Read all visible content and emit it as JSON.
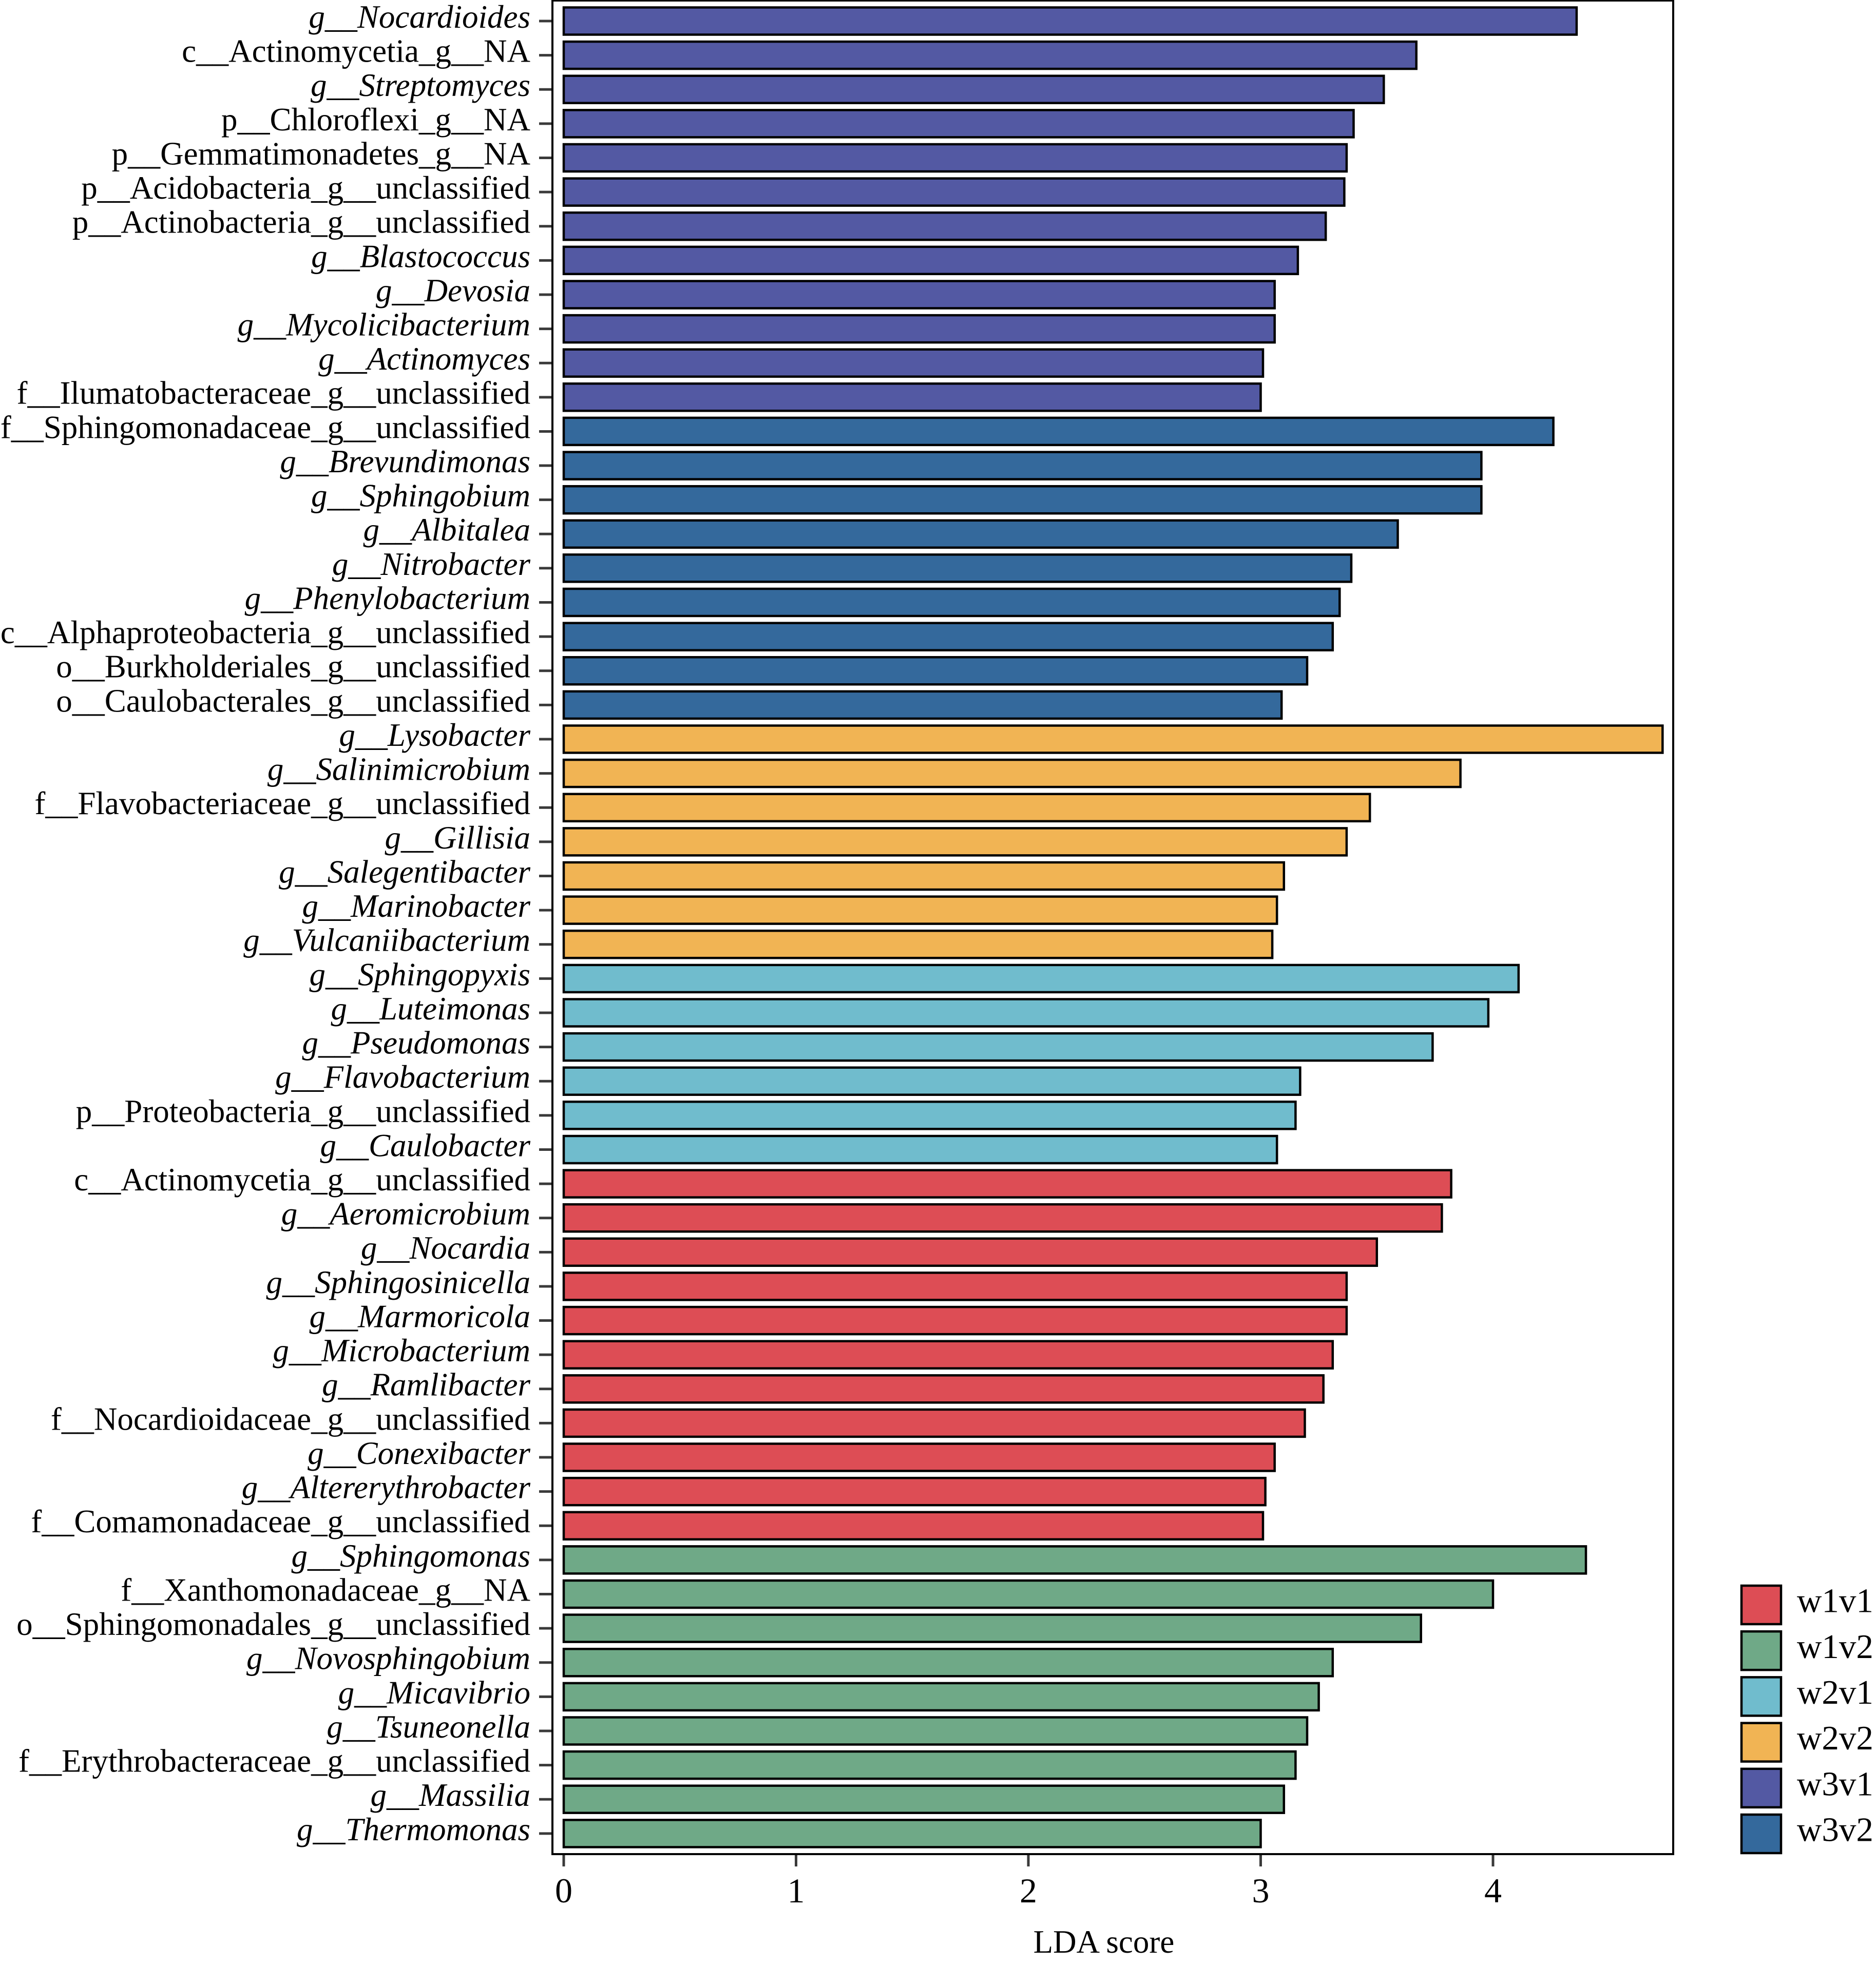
{
  "chart_data": {
    "type": "bar",
    "orientation": "horizontal",
    "title": "",
    "xlabel": "LDA score",
    "ylabel": "",
    "xlim": [
      0,
      4.78
    ],
    "x_ticks": [
      0,
      1,
      2,
      3,
      4
    ],
    "grid": false,
    "legend_position": "bottom-right",
    "bar_outline_color": "#000000",
    "axis_color": "#000000",
    "tick_color": "#3a3a3a",
    "background_color": "#ffffff",
    "bars": [
      {
        "label": "g__Nocardioides",
        "value": 4.36,
        "group": "w3v1",
        "italic": true
      },
      {
        "label": "c__Actinomycetia_g__NA",
        "value": 3.67,
        "group": "w3v1",
        "italic": false
      },
      {
        "label": "g__Streptomyces",
        "value": 3.53,
        "group": "w3v1",
        "italic": true
      },
      {
        "label": "p__Chloroflexi_g__NA",
        "value": 3.4,
        "group": "w3v1",
        "italic": false
      },
      {
        "label": "p__Gemmatimonadetes_g__NA",
        "value": 3.37,
        "group": "w3v1",
        "italic": false
      },
      {
        "label": "p__Acidobacteria_g__unclassified",
        "value": 3.36,
        "group": "w3v1",
        "italic": false
      },
      {
        "label": "p__Actinobacteria_g__unclassified",
        "value": 3.28,
        "group": "w3v1",
        "italic": false
      },
      {
        "label": "g__Blastococcus",
        "value": 3.16,
        "group": "w3v1",
        "italic": true
      },
      {
        "label": "g__Devosia",
        "value": 3.06,
        "group": "w3v1",
        "italic": true
      },
      {
        "label": "g__Mycolicibacterium",
        "value": 3.06,
        "group": "w3v1",
        "italic": true
      },
      {
        "label": "g__Actinomyces",
        "value": 3.01,
        "group": "w3v1",
        "italic": true
      },
      {
        "label": "f__Ilumatobacteraceae_g__unclassified",
        "value": 3.0,
        "group": "w3v1",
        "italic": false
      },
      {
        "label": "f__Sphingomonadaceae_g__unclassified",
        "value": 4.26,
        "group": "w3v2",
        "italic": false
      },
      {
        "label": "g__Brevundimonas",
        "value": 3.95,
        "group": "w3v2",
        "italic": true
      },
      {
        "label": "g__Sphingobium",
        "value": 3.95,
        "group": "w3v2",
        "italic": true
      },
      {
        "label": "g__Albitalea",
        "value": 3.59,
        "group": "w3v2",
        "italic": true
      },
      {
        "label": "g__Nitrobacter",
        "value": 3.39,
        "group": "w3v2",
        "italic": true
      },
      {
        "label": "g__Phenylobacterium",
        "value": 3.34,
        "group": "w3v2",
        "italic": true
      },
      {
        "label": "c__Alphaproteobacteria_g__unclassified",
        "value": 3.31,
        "group": "w3v2",
        "italic": false
      },
      {
        "label": "o__Burkholderiales_g__unclassified",
        "value": 3.2,
        "group": "w3v2",
        "italic": false
      },
      {
        "label": "o__Caulobacterales_g__unclassified",
        "value": 3.09,
        "group": "w3v2",
        "italic": false
      },
      {
        "label": "g__Lysobacter",
        "value": 4.73,
        "group": "w2v2",
        "italic": true
      },
      {
        "label": "g__Salinimicrobium",
        "value": 3.86,
        "group": "w2v2",
        "italic": true
      },
      {
        "label": "f__Flavobacteriaceae_g__unclassified",
        "value": 3.47,
        "group": "w2v2",
        "italic": false
      },
      {
        "label": "g__Gillisia",
        "value": 3.37,
        "group": "w2v2",
        "italic": true
      },
      {
        "label": "g__Salegentibacter",
        "value": 3.1,
        "group": "w2v2",
        "italic": true
      },
      {
        "label": "g__Marinobacter",
        "value": 3.07,
        "group": "w2v2",
        "italic": true
      },
      {
        "label": "g__Vulcaniibacterium",
        "value": 3.05,
        "group": "w2v2",
        "italic": true
      },
      {
        "label": "g__Sphingopyxis",
        "value": 4.11,
        "group": "w2v1",
        "italic": true
      },
      {
        "label": "g__Luteimonas",
        "value": 3.98,
        "group": "w2v1",
        "italic": true
      },
      {
        "label": "g__Pseudomonas",
        "value": 3.74,
        "group": "w2v1",
        "italic": true
      },
      {
        "label": "g__Flavobacterium",
        "value": 3.17,
        "group": "w2v1",
        "italic": true
      },
      {
        "label": "p__Proteobacteria_g__unclassified",
        "value": 3.15,
        "group": "w2v1",
        "italic": false
      },
      {
        "label": "g__Caulobacter",
        "value": 3.07,
        "group": "w2v1",
        "italic": true
      },
      {
        "label": "c__Actinomycetia_g__unclassified",
        "value": 3.82,
        "group": "w1v1",
        "italic": false
      },
      {
        "label": "g__Aeromicrobium",
        "value": 3.78,
        "group": "w1v1",
        "italic": true
      },
      {
        "label": "g__Nocardia",
        "value": 3.5,
        "group": "w1v1",
        "italic": true
      },
      {
        "label": "g__Sphingosinicella",
        "value": 3.37,
        "group": "w1v1",
        "italic": true
      },
      {
        "label": "g__Marmoricola",
        "value": 3.37,
        "group": "w1v1",
        "italic": true
      },
      {
        "label": "g__Microbacterium",
        "value": 3.31,
        "group": "w1v1",
        "italic": true
      },
      {
        "label": "g__Ramlibacter",
        "value": 3.27,
        "group": "w1v1",
        "italic": true
      },
      {
        "label": "f__Nocardioidaceae_g__unclassified",
        "value": 3.19,
        "group": "w1v1",
        "italic": false
      },
      {
        "label": "g__Conexibacter",
        "value": 3.06,
        "group": "w1v1",
        "italic": true
      },
      {
        "label": "g__Altererythrobacter",
        "value": 3.02,
        "group": "w1v1",
        "italic": true
      },
      {
        "label": "f__Comamonadaceae_g__unclassified",
        "value": 3.01,
        "group": "w1v1",
        "italic": false
      },
      {
        "label": "g__Sphingomonas",
        "value": 4.4,
        "group": "w1v2",
        "italic": true
      },
      {
        "label": "f__Xanthomonadaceae_g__NA",
        "value": 4.0,
        "group": "w1v2",
        "italic": false
      },
      {
        "label": "o__Sphingomonadales_g__unclassified",
        "value": 3.69,
        "group": "w1v2",
        "italic": false
      },
      {
        "label": "g__Novosphingobium",
        "value": 3.31,
        "group": "w1v2",
        "italic": true
      },
      {
        "label": "g__Micavibrio",
        "value": 3.25,
        "group": "w1v2",
        "italic": true
      },
      {
        "label": "g__Tsuneonella",
        "value": 3.2,
        "group": "w1v2",
        "italic": true
      },
      {
        "label": "f__Erythrobacteraceae_g__unclassified",
        "value": 3.15,
        "group": "w1v2",
        "italic": false
      },
      {
        "label": "g__Massilia",
        "value": 3.1,
        "group": "w1v2",
        "italic": true
      },
      {
        "label": "g__Thermomonas",
        "value": 3.0,
        "group": "w1v2",
        "italic": true
      }
    ],
    "legend": [
      {
        "name": "w1v1",
        "color": "#dd4d55"
      },
      {
        "name": "w1v2",
        "color": "#6fa987"
      },
      {
        "name": "w2v1",
        "color": "#70bccd"
      },
      {
        "name": "w2v2",
        "color": "#f1b454"
      },
      {
        "name": "w3v1",
        "color": "#5359a3"
      },
      {
        "name": "w3v2",
        "color": "#34699c"
      }
    ]
  }
}
